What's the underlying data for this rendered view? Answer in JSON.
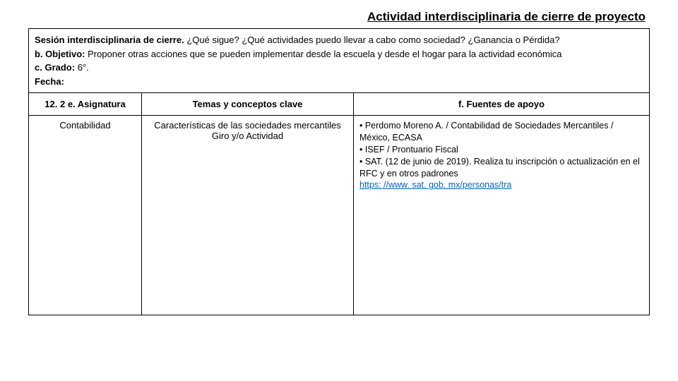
{
  "title": "Actividad interdisciplinaria de cierre de proyecto",
  "intro": {
    "session_label": "Sesión interdisciplinaria de cierre.",
    "session_text": " ¿Qué sigue? ¿Qué actividades puedo llevar a cabo como sociedad? ¿Ganancia o Pérdida?",
    "obj_label": "b. Objetivo:",
    "obj_text": " Proponer otras acciones que se pueden implementar desde la escuela y desde el hogar para la actividad económica",
    "grade_label": "c. Grado:",
    "grade_text": " 6°.",
    "date_label": "Fecha:"
  },
  "headers": {
    "asignatura": "12. 2 e. Asignatura",
    "temas": "Temas y conceptos clave",
    "fuentes": "f. Fuentes de apoyo"
  },
  "row": {
    "asignatura": "Contabilidad",
    "temas_line1": "Características de las sociedades mercantiles",
    "temas_line2": "Giro y/o Actividad",
    "s1": "• Perdomo Moreno A. / Contabilidad de Sociedades Mercantiles / México, ECASA",
    "s2": "• ISEF / Prontuario Fiscal",
    "s3": "• SAT. (12 de junio de 2019). Realiza tu inscripción o actualización en el RFC y en otros padrones",
    "link": "https: //www. sat. gob. mx/personas/tra"
  }
}
